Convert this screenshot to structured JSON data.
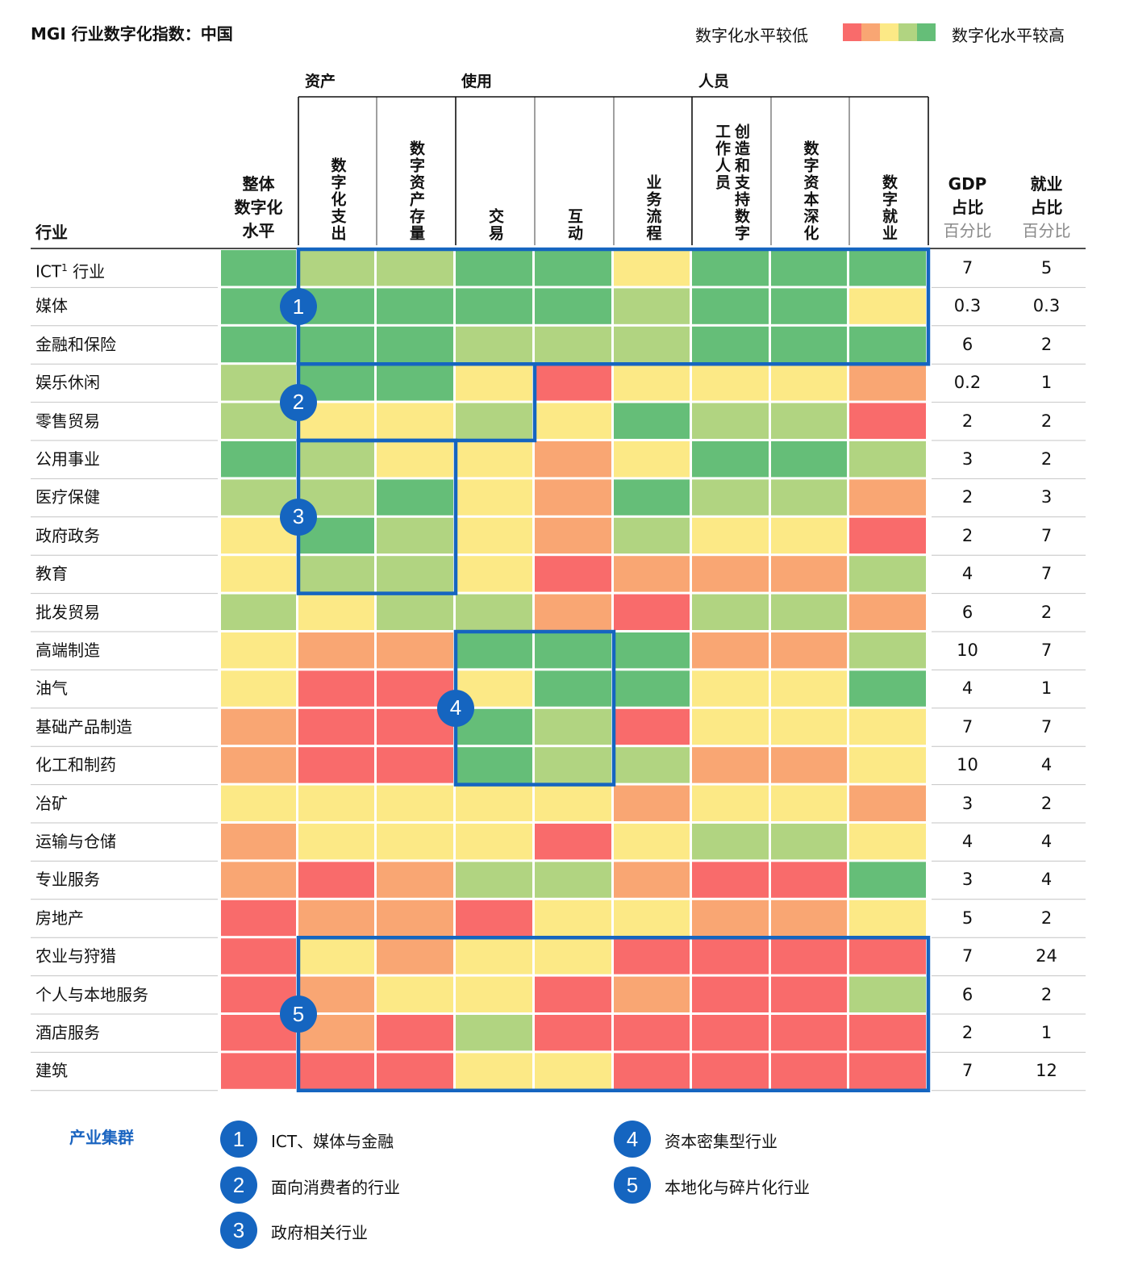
{
  "title": "MGI 行业数字化指数：中国",
  "legend": {
    "low_label": "数字化水平较低",
    "high_label": "数字化水平较高",
    "colors": [
      "#f96b6b",
      "#f9a673",
      "#fce986",
      "#b1d481",
      "#65be78"
    ]
  },
  "headers": {
    "industry": "行业",
    "overall": "整体\n数字化\n水平",
    "groups": [
      "资产",
      "使用",
      "人员"
    ],
    "metrics": [
      "数字化支出",
      "数字资产存量",
      "交易",
      "互动",
      "业务流程",
      "创造和支持数字\n工作人员",
      "数字资本深化",
      "数字就业"
    ],
    "gdp": "GDP\n占比",
    "gdp_sub": "百分比",
    "emp": "就业\n占比",
    "emp_sub": "百分比"
  },
  "chart_data": {
    "type": "heatmap",
    "title": "MGI 行业数字化指数：中国",
    "scale": "1 = 数字化水平较低 … 5 = 数字化水平较高",
    "columns": [
      "整体数字化水平",
      "数字化支出",
      "数字资产存量",
      "交易",
      "互动",
      "业务流程",
      "创造和支持数字工作人员",
      "数字资本深化",
      "数字就业"
    ],
    "rows": [
      {
        "industry": "ICT",
        "footnote": "1",
        "suffix": " 行业",
        "levels": [
          5,
          4,
          4,
          5,
          5,
          3,
          5,
          5,
          5
        ],
        "gdp": "7",
        "employment": "5"
      },
      {
        "industry": "媒体",
        "levels": [
          5,
          5,
          5,
          5,
          5,
          4,
          5,
          5,
          3
        ],
        "gdp": "0.3",
        "employment": "0.3"
      },
      {
        "industry": "金融和保险",
        "levels": [
          5,
          5,
          5,
          4,
          4,
          4,
          5,
          5,
          5
        ],
        "gdp": "6",
        "employment": "2"
      },
      {
        "industry": "娱乐休闲",
        "levels": [
          4,
          5,
          5,
          3,
          1,
          3,
          3,
          3,
          2
        ],
        "gdp": "0.2",
        "employment": "1"
      },
      {
        "industry": "零售贸易",
        "levels": [
          4,
          3,
          3,
          4,
          3,
          5,
          4,
          4,
          1
        ],
        "gdp": "2",
        "employment": "2"
      },
      {
        "industry": "公用事业",
        "levels": [
          5,
          4,
          3,
          3,
          2,
          3,
          5,
          5,
          4
        ],
        "gdp": "3",
        "employment": "2"
      },
      {
        "industry": "医疗保健",
        "levels": [
          4,
          4,
          5,
          3,
          2,
          5,
          4,
          4,
          2
        ],
        "gdp": "2",
        "employment": "3"
      },
      {
        "industry": "政府政务",
        "levels": [
          3,
          5,
          4,
          3,
          2,
          4,
          3,
          3,
          1
        ],
        "gdp": "2",
        "employment": "7"
      },
      {
        "industry": "教育",
        "levels": [
          3,
          4,
          4,
          3,
          1,
          2,
          2,
          2,
          4
        ],
        "gdp": "4",
        "employment": "7"
      },
      {
        "industry": "批发贸易",
        "levels": [
          4,
          3,
          4,
          4,
          2,
          1,
          4,
          4,
          2
        ],
        "gdp": "6",
        "employment": "2"
      },
      {
        "industry": "高端制造",
        "levels": [
          3,
          2,
          2,
          5,
          5,
          5,
          2,
          2,
          4
        ],
        "gdp": "10",
        "employment": "7"
      },
      {
        "industry": "油气",
        "levels": [
          3,
          1,
          1,
          3,
          5,
          5,
          3,
          3,
          5
        ],
        "gdp": "4",
        "employment": "1"
      },
      {
        "industry": "基础产品制造",
        "levels": [
          2,
          1,
          1,
          5,
          4,
          1,
          3,
          3,
          3
        ],
        "gdp": "7",
        "employment": "7"
      },
      {
        "industry": "化工和制药",
        "levels": [
          2,
          1,
          1,
          5,
          4,
          4,
          2,
          2,
          3
        ],
        "gdp": "10",
        "employment": "4"
      },
      {
        "industry": "冶矿",
        "levels": [
          3,
          3,
          3,
          3,
          3,
          2,
          3,
          3,
          2
        ],
        "gdp": "3",
        "employment": "2"
      },
      {
        "industry": "运输与仓储",
        "levels": [
          2,
          3,
          3,
          3,
          1,
          3,
          4,
          4,
          3
        ],
        "gdp": "4",
        "employment": "4"
      },
      {
        "industry": "专业服务",
        "levels": [
          2,
          1,
          2,
          4,
          4,
          2,
          1,
          1,
          5
        ],
        "gdp": "3",
        "employment": "4"
      },
      {
        "industry": "房地产",
        "levels": [
          1,
          2,
          2,
          1,
          3,
          3,
          2,
          2,
          3
        ],
        "gdp": "5",
        "employment": "2"
      },
      {
        "industry": "农业与狩猎",
        "levels": [
          1,
          3,
          2,
          3,
          3,
          1,
          1,
          1,
          1
        ],
        "gdp": "7",
        "employment": "24"
      },
      {
        "industry": "个人与本地服务",
        "levels": [
          1,
          2,
          3,
          3,
          1,
          2,
          1,
          1,
          4
        ],
        "gdp": "6",
        "employment": "2"
      },
      {
        "industry": "酒店服务",
        "levels": [
          1,
          2,
          1,
          4,
          1,
          1,
          1,
          1,
          1
        ],
        "gdp": "2",
        "employment": "1"
      },
      {
        "industry": "建筑",
        "levels": [
          1,
          1,
          1,
          3,
          3,
          1,
          1,
          1,
          1
        ],
        "gdp": "7",
        "employment": "12"
      }
    ],
    "clusters": [
      {
        "id": "1",
        "label": "ICT、媒体与金融"
      },
      {
        "id": "2",
        "label": "面向消费者的行业"
      },
      {
        "id": "3",
        "label": "政府相关行业"
      },
      {
        "id": "4",
        "label": "资本密集型行业"
      },
      {
        "id": "5",
        "label": "本地化与碎片化行业"
      }
    ]
  },
  "footer": {
    "title": "产业集群"
  }
}
